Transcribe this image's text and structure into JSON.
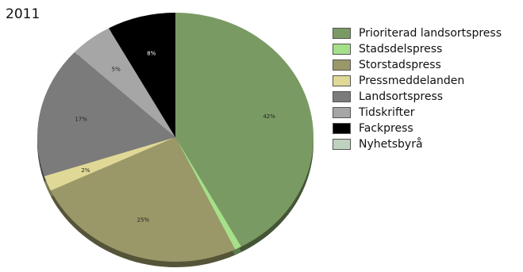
{
  "chart_data": {
    "type": "pie",
    "title": "2011",
    "legend_position": "right",
    "slices": [
      {
        "name": "Prioriterad landsortspress",
        "value": 42,
        "label": "42%",
        "color": "#7a9a63"
      },
      {
        "name": "Stadsdelspress",
        "value": 0.8,
        "label": "",
        "color": "#a6e08a"
      },
      {
        "name": "Storstadspress",
        "value": 25,
        "label": "25%",
        "color": "#9a9868"
      },
      {
        "name": "Pressmeddelanden",
        "value": 2,
        "label": "2%",
        "color": "#e0d896"
      },
      {
        "name": "Landsortspress",
        "value": 17,
        "label": "17%",
        "color": "#7b7b7b"
      },
      {
        "name": "Tidskrifter",
        "value": 5,
        "label": "5%",
        "color": "#a6a6a6"
      },
      {
        "name": "Fackpress",
        "value": 8,
        "label": "8%",
        "color": "#000000"
      },
      {
        "name": "Nyhetsbyrå",
        "value": 0,
        "label": "",
        "color": "#bfd2bf"
      }
    ]
  }
}
